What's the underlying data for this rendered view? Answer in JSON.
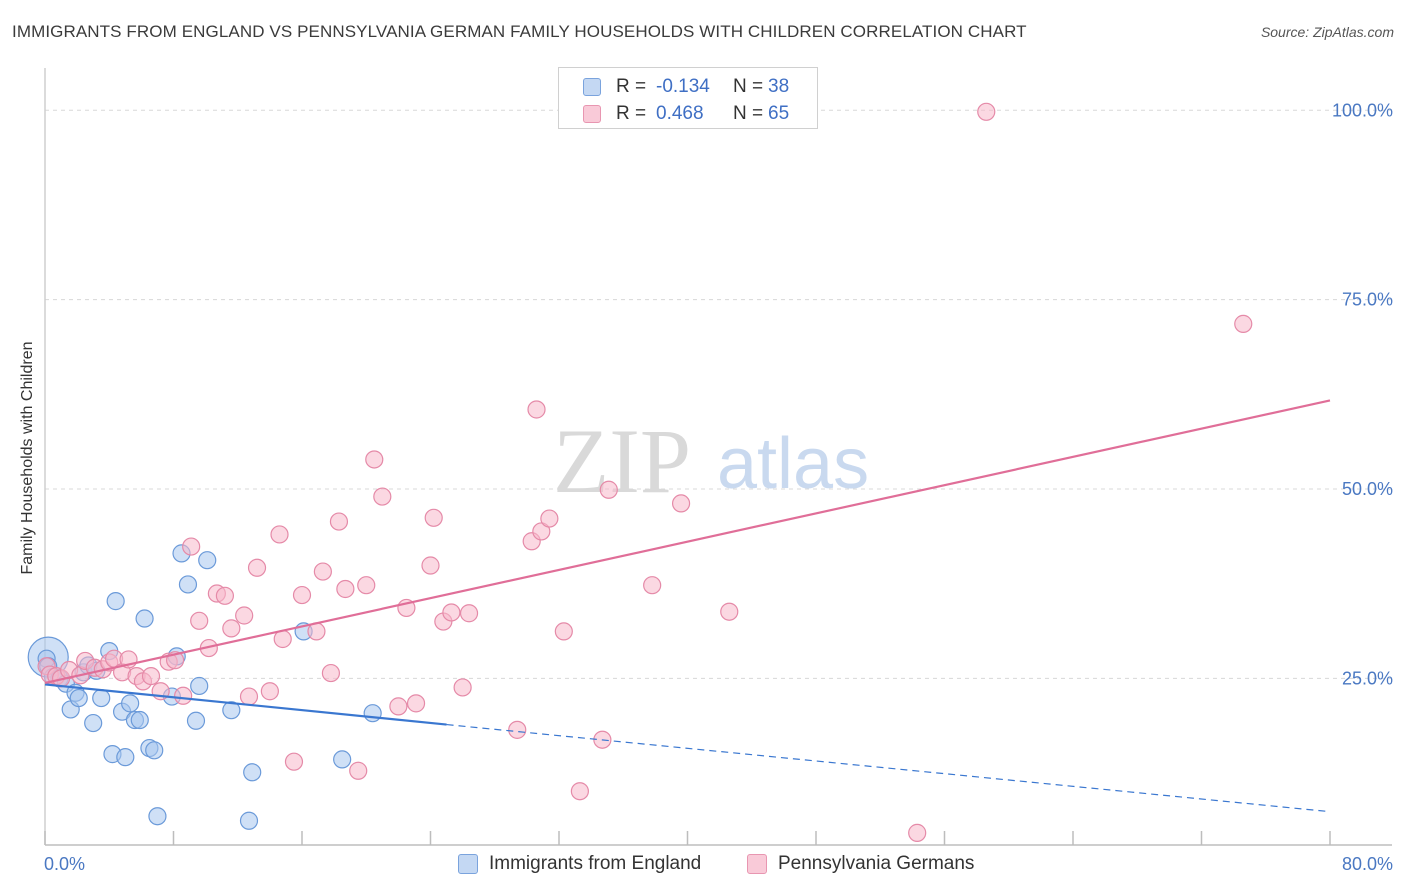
{
  "header": {
    "title": "IMMIGRANTS FROM ENGLAND VS PENNSYLVANIA GERMAN FAMILY HOUSEHOLDS WITH CHILDREN CORRELATION CHART",
    "source": "Source: ZipAtlas.com"
  },
  "watermark": {
    "zip": "ZIP",
    "atlas": "atlas"
  },
  "stats": {
    "blue": {
      "r_label": "R =",
      "r_value": "-0.134",
      "n_label": "N =",
      "n_value": "38"
    },
    "pink": {
      "r_label": "R =",
      "r_value": "0.468",
      "n_label": "N =",
      "n_value": "65"
    }
  },
  "legend": {
    "blue": "Immigrants from England",
    "pink": "Pennsylvania Germans"
  },
  "colors": {
    "blue_fill": "#a8c6ee",
    "blue_stroke": "#6b9ad9",
    "blue_line": "#3a77d0",
    "pink_fill": "#f7b8cb",
    "pink_stroke": "#e58aa8",
    "pink_line": "#e06e98",
    "tick": "#4a78c2",
    "grid": "#d8d8d8"
  },
  "chart_data": {
    "type": "scatter",
    "xlabel": "",
    "ylabel": "Family Households with Children",
    "xlim": [
      0,
      80
    ],
    "ylim": [
      3,
      104
    ],
    "x_tick_labels": [
      {
        "value": 0,
        "label": "0.0%"
      },
      {
        "value": 80,
        "label": "80.0%"
      }
    ],
    "y_tick_labels": [
      {
        "value": 25,
        "label": "25.0%"
      },
      {
        "value": 50,
        "label": "50.0%"
      },
      {
        "value": 75,
        "label": "75.0%"
      },
      {
        "value": 100,
        "label": "100.0%"
      }
    ],
    "series": [
      {
        "name": "Immigrants from England",
        "color": "blue",
        "points": [
          [
            0.1,
            27.6
          ],
          [
            0.2,
            26.6
          ],
          [
            0.5,
            25.2
          ],
          [
            0.9,
            25.0
          ],
          [
            1.3,
            24.3
          ],
          [
            1.6,
            20.9
          ],
          [
            1.9,
            23.1
          ],
          [
            2.1,
            22.4
          ],
          [
            2.4,
            25.8
          ],
          [
            2.7,
            26.7
          ],
          [
            3.0,
            19.1
          ],
          [
            3.2,
            26.0
          ],
          [
            3.5,
            22.4
          ],
          [
            4.0,
            28.6
          ],
          [
            4.2,
            15.0
          ],
          [
            4.4,
            35.2
          ],
          [
            4.8,
            20.6
          ],
          [
            5.0,
            14.6
          ],
          [
            5.3,
            21.7
          ],
          [
            5.6,
            19.5
          ],
          [
            5.9,
            19.5
          ],
          [
            6.2,
            32.9
          ],
          [
            6.5,
            15.8
          ],
          [
            6.8,
            15.5
          ],
          [
            7.0,
            6.8
          ],
          [
            7.9,
            22.6
          ],
          [
            8.2,
            27.9
          ],
          [
            8.5,
            41.5
          ],
          [
            8.9,
            37.4
          ],
          [
            9.4,
            19.4
          ],
          [
            9.6,
            24.0
          ],
          [
            10.1,
            40.6
          ],
          [
            11.6,
            20.8
          ],
          [
            12.9,
            12.6
          ],
          [
            12.7,
            6.2
          ],
          [
            16.1,
            31.2
          ],
          [
            18.5,
            14.3
          ],
          [
            20.4,
            20.4
          ]
        ]
      },
      {
        "name": "Pennsylvania Germans",
        "color": "pink",
        "points": [
          [
            0.1,
            26.6
          ],
          [
            0.3,
            25.5
          ],
          [
            0.7,
            25.3
          ],
          [
            1.0,
            25.0
          ],
          [
            1.5,
            26.1
          ],
          [
            2.2,
            25.4
          ],
          [
            2.5,
            27.3
          ],
          [
            3.1,
            26.4
          ],
          [
            3.6,
            26.2
          ],
          [
            4.0,
            27.1
          ],
          [
            4.3,
            27.6
          ],
          [
            4.8,
            25.8
          ],
          [
            5.2,
            27.5
          ],
          [
            5.7,
            25.3
          ],
          [
            6.1,
            24.6
          ],
          [
            6.6,
            25.3
          ],
          [
            7.2,
            23.3
          ],
          [
            7.7,
            27.2
          ],
          [
            8.1,
            27.4
          ],
          [
            8.6,
            22.7
          ],
          [
            9.1,
            42.4
          ],
          [
            9.6,
            32.6
          ],
          [
            10.2,
            29.0
          ],
          [
            10.7,
            36.2
          ],
          [
            11.2,
            35.9
          ],
          [
            11.6,
            31.6
          ],
          [
            12.4,
            33.3
          ],
          [
            12.7,
            22.6
          ],
          [
            13.2,
            39.6
          ],
          [
            14.0,
            23.3
          ],
          [
            14.6,
            44.0
          ],
          [
            14.8,
            30.2
          ],
          [
            15.5,
            14.0
          ],
          [
            16.0,
            36.0
          ],
          [
            16.9,
            31.2
          ],
          [
            17.3,
            39.1
          ],
          [
            17.8,
            25.7
          ],
          [
            18.3,
            45.7
          ],
          [
            18.7,
            36.8
          ],
          [
            19.5,
            12.8
          ],
          [
            20.0,
            37.3
          ],
          [
            20.5,
            53.9
          ],
          [
            21.0,
            49.0
          ],
          [
            22.0,
            21.3
          ],
          [
            22.5,
            34.3
          ],
          [
            23.1,
            21.7
          ],
          [
            24.0,
            39.9
          ],
          [
            24.2,
            46.2
          ],
          [
            24.8,
            32.5
          ],
          [
            25.3,
            33.7
          ],
          [
            26.0,
            23.8
          ],
          [
            26.4,
            33.6
          ],
          [
            29.4,
            18.2
          ],
          [
            30.3,
            43.1
          ],
          [
            30.6,
            60.5
          ],
          [
            30.9,
            44.4
          ],
          [
            31.4,
            46.1
          ],
          [
            32.3,
            31.2
          ],
          [
            33.3,
            10.1
          ],
          [
            34.7,
            16.9
          ],
          [
            35.1,
            49.9
          ],
          [
            37.8,
            37.3
          ],
          [
            39.6,
            48.1
          ],
          [
            54.3,
            4.6
          ],
          [
            58.6,
            99.8
          ]
        ]
      }
    ],
    "trend_lines": [
      {
        "series": "Immigrants from England",
        "x0": 0,
        "y0": 24.2,
        "x1": 25.0,
        "y1": 18.9,
        "dashed_to_x": 80,
        "dashed_to_y": 7.4
      },
      {
        "series": "Pennsylvania Germans",
        "x0": 0,
        "y0": 24.4,
        "x1": 80,
        "y1": 61.7
      }
    ],
    "bubble_note": "",
    "big_point": [
      0.2,
      27.8
    ],
    "extra_points_pink": [
      [
        74.6,
        71.8
      ],
      [
        42.6,
        33.8
      ]
    ]
  }
}
